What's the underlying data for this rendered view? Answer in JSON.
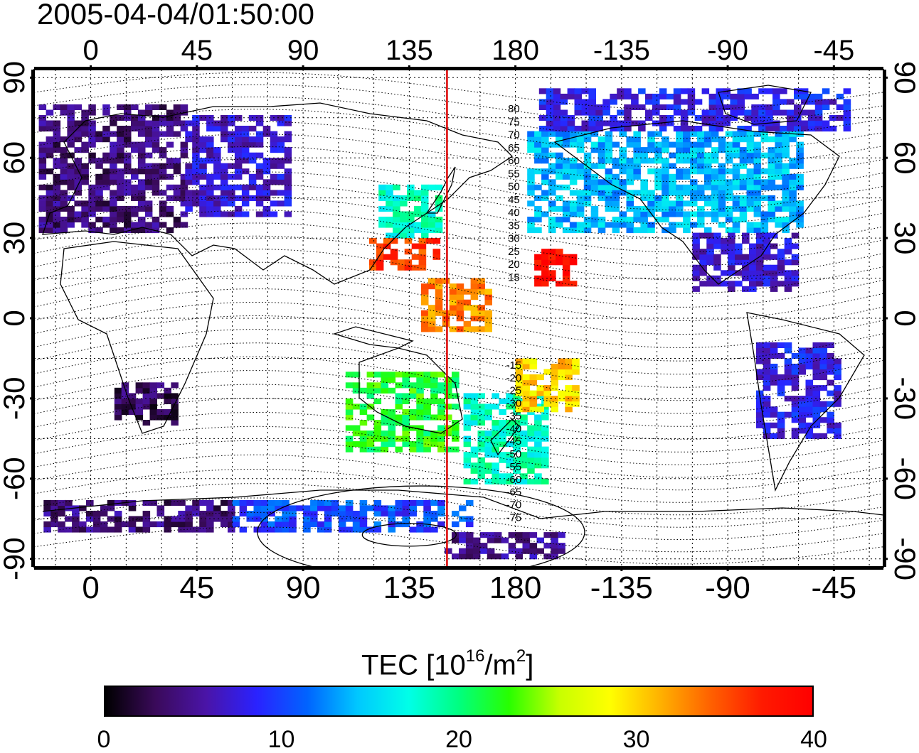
{
  "title": "2005-04-04/01:50:00",
  "map": {
    "lon_labels": [
      "0",
      "45",
      "90",
      "135",
      "180",
      "-135",
      "-90",
      "-45"
    ],
    "lon_values": [
      0,
      45,
      90,
      135,
      180,
      225,
      270,
      315
    ],
    "lat_labels": [
      "90",
      "60",
      "30",
      "0",
      "-30",
      "-60",
      "-90"
    ],
    "lat_values": [
      90,
      60,
      30,
      0,
      -30,
      -60,
      -90
    ],
    "lon_range": [
      -24,
      336
    ],
    "lat_range": [
      -93,
      93
    ],
    "terminator_lon": 151,
    "terminator_color": "#dd0000",
    "contour_labels_north": [
      "80",
      "75",
      "70",
      "65",
      "60",
      "55",
      "50",
      "45",
      "40",
      "35",
      "30",
      "25",
      "20",
      "15"
    ],
    "contour_labels_south": [
      "15",
      "20",
      "25",
      "30",
      "35",
      "40",
      "45",
      "50",
      "55",
      "60",
      "65",
      "70",
      "75"
    ]
  },
  "colorbar": {
    "title_main": "TEC  [10",
    "title_exp1": "16",
    "title_mid": "/m",
    "title_exp2": "2",
    "title_end": "]",
    "ticks": [
      "0",
      "10",
      "20",
      "30",
      "40"
    ],
    "tick_values": [
      0,
      10,
      20,
      30,
      40
    ],
    "range": [
      0,
      40
    ],
    "colors": [
      "#000000",
      "#3a0a5a",
      "#4a14a8",
      "#2a22ff",
      "#0064ff",
      "#00c8ff",
      "#00ffe8",
      "#00ff80",
      "#28ff00",
      "#c8ff00",
      "#ffff00",
      "#ffb000",
      "#ff6000",
      "#ff1a00",
      "#ff0000"
    ]
  },
  "tec_regions": [
    {
      "lon_from": -22,
      "lon_to": 40,
      "lat_from": 32,
      "lat_to": 80,
      "tec": 4
    },
    {
      "lon_from": 40,
      "lon_to": 85,
      "lat_from": 38,
      "lat_to": 75,
      "tec": 7
    },
    {
      "lon_from": 122,
      "lon_to": 148,
      "lat_from": 30,
      "lat_to": 50,
      "tec": 18
    },
    {
      "lon_from": 118,
      "lon_to": 148,
      "lat_from": 18,
      "lat_to": 30,
      "tec": 36
    },
    {
      "lon_from": 185,
      "lon_to": 300,
      "lat_from": 32,
      "lat_to": 70,
      "tec": 14
    },
    {
      "lon_from": 190,
      "lon_to": 320,
      "lat_from": 70,
      "lat_to": 86,
      "tec": 8
    },
    {
      "lon_from": 255,
      "lon_to": 300,
      "lat_from": 10,
      "lat_to": 32,
      "tec": 7
    },
    {
      "lon_from": 282,
      "lon_to": 318,
      "lat_from": -45,
      "lat_to": -10,
      "tec": 8
    },
    {
      "lon_from": 10,
      "lon_to": 35,
      "lat_from": -40,
      "lat_to": -25,
      "tec": 3
    },
    {
      "lon_from": 108,
      "lon_to": 156,
      "lat_from": -50,
      "lat_to": -20,
      "tec": 22
    },
    {
      "lon_from": 158,
      "lon_to": 192,
      "lat_from": -62,
      "lat_to": -28,
      "tec": 18
    },
    {
      "lon_from": 188,
      "lon_to": 205,
      "lat_from": 12,
      "lat_to": 25,
      "tec": 39
    },
    {
      "lon_from": 140,
      "lon_to": 170,
      "lat_from": -5,
      "lat_to": 15,
      "tec": 33
    },
    {
      "lon_from": 180,
      "lon_to": 205,
      "lat_from": -35,
      "lat_to": -15,
      "tec": 30
    },
    {
      "lon_from": -20,
      "lon_to": 60,
      "lat_from": -80,
      "lat_to": -68,
      "tec": 4
    },
    {
      "lon_from": 60,
      "lon_to": 160,
      "lat_from": -80,
      "lat_to": -68,
      "tec": 10
    },
    {
      "lon_from": 150,
      "lon_to": 200,
      "lat_from": -90,
      "lat_to": -80,
      "tec": 5
    }
  ]
}
